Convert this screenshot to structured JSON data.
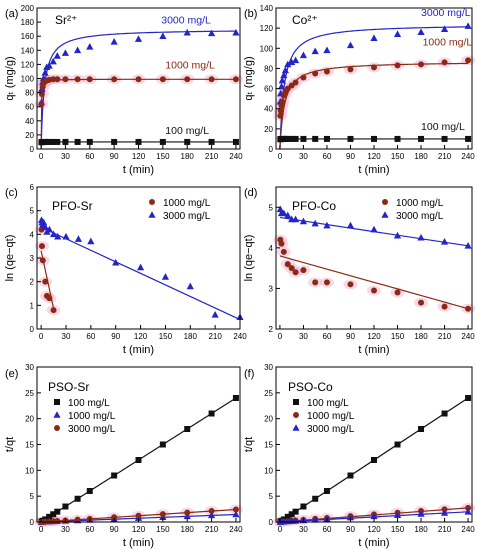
{
  "colors": {
    "black": "#111111",
    "blue": "#2424c8",
    "red": "#8b2a12",
    "glow": "#f3b8d6"
  },
  "chart_data": [
    {
      "panel": "(a)",
      "type": "scatter",
      "title": "Sr²⁺",
      "xlabel": "t (min)",
      "ylabel": "qₜ (mg/g)",
      "xlim": [
        -5,
        245
      ],
      "ylim": [
        0,
        200
      ],
      "xticks": [
        0,
        30,
        60,
        90,
        120,
        150,
        180,
        210,
        240
      ],
      "yticks": [
        0,
        20,
        40,
        60,
        80,
        100,
        120,
        140,
        160,
        180,
        200
      ],
      "series": [
        {
          "name": "3000 mg/L",
          "color": "blue",
          "marker": "triangle",
          "x": [
            0.5,
            1,
            2,
            3,
            5,
            7,
            10,
            15,
            20,
            30,
            45,
            60,
            90,
            120,
            150,
            180,
            210,
            240
          ],
          "y": [
            66,
            85,
            95,
            100,
            108,
            116,
            118,
            124,
            132,
            136,
            140,
            145,
            152,
            156,
            160,
            165,
            164,
            165
          ],
          "fit": "pso",
          "fit_params": [
            170,
            0.0015
          ]
        },
        {
          "name": "1000 mg/L",
          "color": "red",
          "marker": "circle",
          "x": [
            0.5,
            1,
            2,
            3,
            5,
            7,
            10,
            15,
            20,
            30,
            45,
            60,
            90,
            120,
            150,
            180,
            210,
            240
          ],
          "y": [
            64,
            78,
            88,
            93,
            96,
            97,
            98,
            99,
            99,
            99,
            99,
            99,
            99,
            99,
            99,
            99,
            99,
            99
          ],
          "fit": "pso",
          "fit_params": [
            99,
            0.05
          ]
        },
        {
          "name": "100 mg/L",
          "color": "black",
          "marker": "square",
          "x": [
            0.5,
            1,
            2,
            3,
            5,
            7,
            10,
            15,
            20,
            30,
            45,
            60,
            90,
            120,
            150,
            180,
            210,
            240
          ],
          "y": [
            9.6,
            9.8,
            9.9,
            9.9,
            10,
            10,
            10,
            10,
            10,
            10,
            10,
            10,
            10,
            10,
            10,
            10,
            10,
            10
          ],
          "fit": "flat",
          "fit_params": [
            10
          ]
        }
      ],
      "annotations": [
        {
          "text": "3000 mg/L",
          "color": "blue",
          "x": 148,
          "y": 178
        },
        {
          "text": "1000 mg/L",
          "color": "red",
          "x": 153,
          "y": 114
        },
        {
          "text": "100 mg/L",
          "color": "black",
          "x": 153,
          "y": 21
        }
      ]
    },
    {
      "panel": "(b)",
      "type": "scatter",
      "title": "Co²⁺",
      "xlabel": "t (min)",
      "ylabel": "qₜ (mg/g)",
      "xlim": [
        -5,
        245
      ],
      "ylim": [
        0,
        140
      ],
      "xticks": [
        0,
        30,
        60,
        90,
        120,
        150,
        180,
        210,
        240
      ],
      "yticks": [
        0,
        20,
        40,
        60,
        80,
        100,
        120,
        140
      ],
      "series": [
        {
          "name": "3000 mg/L",
          "color": "blue",
          "marker": "triangle",
          "x": [
            0.5,
            1,
            2,
            3,
            5,
            7,
            10,
            15,
            20,
            30,
            45,
            60,
            90,
            120,
            150,
            180,
            210,
            240
          ],
          "y": [
            47,
            55,
            62,
            68,
            73,
            78,
            84,
            86,
            88,
            93,
            97,
            98,
            103,
            110,
            114,
            116,
            119,
            122
          ],
          "fit": "pso",
          "fit_params": [
            124,
            0.0015
          ]
        },
        {
          "name": "1000 mg/L",
          "color": "red",
          "marker": "circle",
          "x": [
            0.5,
            1,
            2,
            3,
            5,
            7,
            10,
            15,
            20,
            30,
            45,
            60,
            90,
            120,
            150,
            180,
            210,
            240
          ],
          "y": [
            33,
            38,
            43,
            47,
            53,
            57,
            60,
            63,
            66,
            71,
            75,
            77,
            79,
            81,
            83,
            84,
            86,
            88
          ],
          "fit": "pso",
          "fit_params": [
            87,
            0.002
          ]
        },
        {
          "name": "100 mg/L",
          "color": "black",
          "marker": "square",
          "x": [
            0.5,
            1,
            2,
            3,
            5,
            7,
            10,
            15,
            20,
            30,
            45,
            60,
            90,
            120,
            150,
            180,
            210,
            240
          ],
          "y": [
            9.7,
            9.8,
            9.9,
            10,
            10,
            10,
            10,
            10,
            10,
            10,
            10,
            10,
            10,
            10,
            10,
            10,
            10,
            10
          ],
          "fit": "flat",
          "fit_params": [
            10
          ]
        }
      ],
      "annotations": [
        {
          "text": "3000 mg/L",
          "color": "blue",
          "x": 180,
          "y": 132
        },
        {
          "text": "1000 mg/L",
          "color": "red",
          "x": 182,
          "y": 103
        },
        {
          "text": "100 mg/L",
          "color": "black",
          "x": 180,
          "y": 19
        }
      ]
    },
    {
      "panel": "(c)",
      "type": "scatter",
      "title": "PFO-Sr",
      "xlabel": "t (min)",
      "ylabel": "ln (qe−qt)",
      "xlim": [
        -5,
        240
      ],
      "ylim": [
        0,
        6
      ],
      "xticks": [
        0,
        30,
        60,
        90,
        120,
        150,
        180,
        210,
        240
      ],
      "yticks": [
        0,
        1,
        2,
        3,
        4,
        5,
        6
      ],
      "legend": "top-right",
      "series": [
        {
          "name": "1000 mg/L",
          "color": "red",
          "marker": "circle",
          "x": [
            0.5,
            1,
            2,
            5,
            7,
            10,
            15
          ],
          "y": [
            4.2,
            3.5,
            2.9,
            2.0,
            1.4,
            1.3,
            0.8
          ],
          "fit": "line",
          "fit_params": [
            0,
            3.3,
            16,
            0.7
          ]
        },
        {
          "name": "3000 mg/L",
          "color": "blue",
          "marker": "triangle",
          "x": [
            0.5,
            1,
            2,
            3,
            5,
            7,
            10,
            15,
            20,
            30,
            45,
            60,
            90,
            120,
            150,
            180,
            210,
            240
          ],
          "y": [
            4.6,
            4.5,
            4.4,
            4.5,
            4.3,
            4.1,
            4.2,
            4.0,
            3.9,
            3.9,
            3.8,
            3.7,
            2.8,
            2.6,
            2.2,
            1.8,
            0.6,
            0.5
          ],
          "fit": "line",
          "fit_params": [
            0,
            4.3,
            240,
            0.4
          ]
        }
      ]
    },
    {
      "panel": "(d)",
      "type": "scatter",
      "title": "PFO-Co",
      "xlabel": "t (min)",
      "ylabel": "ln (qe−qt)",
      "xlim": [
        -5,
        245
      ],
      "ylim": [
        2,
        5.5
      ],
      "xticks": [
        0,
        30,
        60,
        90,
        120,
        150,
        180,
        210,
        240
      ],
      "yticks": [
        2,
        3,
        4,
        5
      ],
      "legend": "top-right",
      "series": [
        {
          "name": "1000 mg/L",
          "color": "red",
          "marker": "circle",
          "x": [
            0.5,
            2,
            5,
            10,
            15,
            20,
            30,
            45,
            60,
            90,
            120,
            150,
            180,
            210,
            240
          ],
          "y": [
            4.2,
            4.1,
            3.9,
            3.6,
            3.5,
            3.4,
            3.45,
            3.15,
            3.15,
            3.1,
            2.95,
            2.9,
            2.65,
            2.55,
            2.5
          ],
          "fit": "line",
          "fit_params": [
            0,
            3.8,
            240,
            2.5
          ]
        },
        {
          "name": "3000 mg/L",
          "color": "blue",
          "marker": "triangle",
          "x": [
            0.5,
            2,
            5,
            10,
            15,
            20,
            30,
            45,
            60,
            90,
            120,
            150,
            180,
            210,
            240
          ],
          "y": [
            4.95,
            4.85,
            4.85,
            4.8,
            4.7,
            4.7,
            4.65,
            4.6,
            4.55,
            4.55,
            4.45,
            4.3,
            4.25,
            4.15,
            4.05
          ],
          "fit": "line",
          "fit_params": [
            0,
            4.75,
            240,
            4.05
          ]
        }
      ]
    },
    {
      "panel": "(e)",
      "type": "scatter",
      "title": "PSO-Sr",
      "xlabel": "t (min)",
      "ylabel": "t/qt",
      "xlim": [
        -5,
        245
      ],
      "ylim": [
        0,
        30
      ],
      "xticks": [
        0,
        30,
        60,
        90,
        120,
        150,
        180,
        210,
        240
      ],
      "yticks": [
        0,
        5,
        10,
        15,
        20,
        25,
        30
      ],
      "legend": "top-left",
      "series": [
        {
          "name": "100 mg/L",
          "color": "black",
          "marker": "square",
          "x": [
            0.5,
            2,
            5,
            10,
            15,
            20,
            30,
            45,
            60,
            90,
            120,
            150,
            180,
            210,
            240
          ],
          "y": [
            0.05,
            0.2,
            0.5,
            1.0,
            1.5,
            2.0,
            3.0,
            4.5,
            6.0,
            9.0,
            12.0,
            15.0,
            18.0,
            21.0,
            24.0
          ],
          "fit": "line",
          "fit_params": [
            0,
            0,
            240,
            24
          ]
        },
        {
          "name": "1000 mg/L",
          "color": "blue",
          "marker": "triangle",
          "x": [
            0.5,
            2,
            5,
            10,
            15,
            20,
            30,
            45,
            60,
            90,
            120,
            150,
            180,
            210,
            240
          ],
          "y": [
            0.01,
            0.02,
            0.05,
            0.08,
            0.12,
            0.15,
            0.22,
            0.33,
            0.42,
            0.6,
            0.77,
            0.94,
            1.09,
            1.28,
            1.45
          ],
          "fit": "line",
          "fit_params": [
            0,
            0,
            240,
            1.45
          ]
        },
        {
          "name": "3000 mg/L",
          "color": "red",
          "marker": "circle",
          "x": [
            0.5,
            2,
            5,
            10,
            15,
            20,
            30,
            45,
            60,
            90,
            120,
            150,
            180,
            210,
            240
          ],
          "y": [
            0.01,
            0.02,
            0.05,
            0.1,
            0.15,
            0.2,
            0.3,
            0.45,
            0.61,
            0.91,
            1.21,
            1.52,
            1.82,
            2.12,
            2.42
          ],
          "fit": "line",
          "fit_params": [
            0,
            0,
            240,
            2.42
          ]
        }
      ]
    },
    {
      "panel": "(f)",
      "type": "scatter",
      "title": "PSO-Co",
      "xlabel": "t (min)",
      "ylabel": "t/qt",
      "xlim": [
        -5,
        245
      ],
      "ylim": [
        0,
        30
      ],
      "xticks": [
        0,
        30,
        60,
        90,
        120,
        150,
        180,
        210,
        240
      ],
      "yticks": [
        0,
        5,
        10,
        15,
        20,
        25,
        30
      ],
      "legend": "top-left",
      "series": [
        {
          "name": "100 mg/L",
          "color": "black",
          "marker": "square",
          "x": [
            0.5,
            2,
            5,
            10,
            15,
            20,
            30,
            45,
            60,
            90,
            120,
            150,
            180,
            210,
            240
          ],
          "y": [
            0.05,
            0.2,
            0.5,
            1.0,
            1.5,
            2.0,
            3.0,
            4.5,
            6.0,
            9.0,
            12.0,
            15.0,
            18.0,
            21.0,
            24.0
          ],
          "fit": "line",
          "fit_params": [
            0,
            0,
            240,
            24
          ]
        },
        {
          "name": "1000 mg/L",
          "color": "red",
          "marker": "circle",
          "x": [
            0.5,
            2,
            5,
            10,
            15,
            20,
            30,
            45,
            60,
            90,
            120,
            150,
            180,
            210,
            240
          ],
          "y": [
            0.02,
            0.05,
            0.1,
            0.17,
            0.25,
            0.3,
            0.42,
            0.6,
            0.78,
            1.14,
            1.48,
            1.8,
            2.14,
            2.44,
            2.73
          ],
          "fit": "line",
          "fit_params": [
            0,
            0,
            240,
            2.73
          ]
        },
        {
          "name": "3000 mg/L",
          "color": "blue",
          "marker": "triangle",
          "x": [
            0.5,
            2,
            5,
            10,
            15,
            20,
            30,
            45,
            60,
            90,
            120,
            150,
            180,
            210,
            240
          ],
          "y": [
            0.01,
            0.03,
            0.07,
            0.12,
            0.18,
            0.23,
            0.32,
            0.46,
            0.61,
            0.87,
            1.09,
            1.31,
            1.55,
            1.76,
            1.97
          ],
          "fit": "line",
          "fit_params": [
            0,
            0,
            240,
            1.97
          ]
        }
      ]
    }
  ]
}
